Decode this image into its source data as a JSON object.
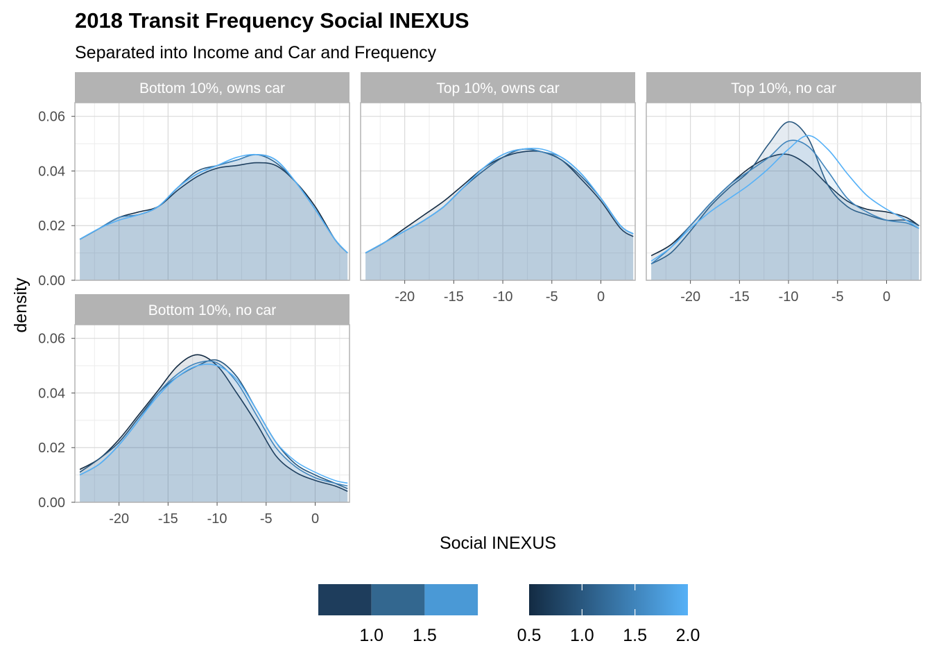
{
  "chart_data": {
    "type": "area",
    "title": "2018 Transit Frequency Social INEXUS",
    "subtitle": "Separated into Income and Car and Frequency",
    "xlabel": "Social INEXUS",
    "ylabel": "density",
    "xlim": [
      -24.5,
      3.5
    ],
    "ylim": [
      0,
      0.065
    ],
    "x_ticks": [
      -20,
      -15,
      -10,
      -5,
      0
    ],
    "y_ticks": [
      0.0,
      0.02,
      0.04,
      0.06
    ],
    "x_tick_labels": [
      "-20",
      "-15",
      "-10",
      "-5",
      "0"
    ],
    "y_tick_labels": [
      "0.00",
      "0.02",
      "0.04",
      "0.06"
    ],
    "grid": true,
    "x": [
      -24,
      -22,
      -20,
      -18,
      -16,
      -14,
      -12,
      -10,
      -8,
      -6,
      -4,
      -2,
      0,
      2,
      3.3
    ],
    "panels": [
      {
        "label": "Bottom 10%, owns car",
        "series": [
          {
            "frequency": 0.5,
            "fill_alpha": 0.3,
            "values": [
              0.015,
              0.019,
              0.023,
              0.025,
              0.027,
              0.033,
              0.038,
              0.041,
              0.042,
              0.043,
              0.042,
              0.036,
              0.027,
              0.015,
              0.01
            ]
          },
          {
            "frequency": 1.0,
            "fill_alpha": 0.3,
            "values": [
              0.015,
              0.019,
              0.023,
              0.024,
              0.027,
              0.034,
              0.04,
              0.042,
              0.044,
              0.046,
              0.043,
              0.036,
              0.026,
              0.015,
              0.01
            ]
          },
          {
            "frequency": 1.5,
            "fill_alpha": 0.3,
            "values": [
              0.015,
              0.019,
              0.023,
              0.024,
              0.027,
              0.034,
              0.039,
              0.042,
              0.044,
              0.046,
              0.044,
              0.036,
              0.026,
              0.015,
              0.01
            ]
          },
          {
            "frequency": 2.0,
            "fill_alpha": 0.0,
            "values": [
              0.015,
              0.019,
              0.022,
              0.024,
              0.027,
              0.034,
              0.039,
              0.042,
              0.045,
              0.046,
              0.044,
              0.036,
              0.026,
              0.015,
              0.01
            ]
          }
        ]
      },
      {
        "label": "Top 10%, owns car",
        "series": [
          {
            "frequency": 0.5,
            "fill_alpha": 0.3,
            "values": [
              0.01,
              0.014,
              0.019,
              0.024,
              0.029,
              0.035,
              0.041,
              0.045,
              0.047,
              0.047,
              0.044,
              0.037,
              0.029,
              0.019,
              0.016
            ]
          },
          {
            "frequency": 1.0,
            "fill_alpha": 0.3,
            "values": [
              0.01,
              0.014,
              0.018,
              0.022,
              0.027,
              0.034,
              0.04,
              0.045,
              0.048,
              0.047,
              0.044,
              0.038,
              0.03,
              0.02,
              0.017
            ]
          },
          {
            "frequency": 1.5,
            "fill_alpha": 0.3,
            "values": [
              0.01,
              0.014,
              0.018,
              0.022,
              0.027,
              0.034,
              0.041,
              0.046,
              0.048,
              0.047,
              0.045,
              0.039,
              0.03,
              0.02,
              0.017
            ]
          },
          {
            "frequency": 2.0,
            "fill_alpha": 0.0,
            "values": [
              0.01,
              0.014,
              0.018,
              0.022,
              0.027,
              0.034,
              0.041,
              0.046,
              0.048,
              0.048,
              0.045,
              0.039,
              0.03,
              0.02,
              0.017
            ]
          }
        ]
      },
      {
        "label": "Top 10%, no car",
        "series": [
          {
            "frequency": 0.5,
            "fill_alpha": 0.3,
            "values": [
              0.009,
              0.013,
              0.02,
              0.028,
              0.035,
              0.041,
              0.045,
              0.046,
              0.042,
              0.035,
              0.029,
              0.026,
              0.025,
              0.023,
              0.02
            ]
          },
          {
            "frequency": 1.0,
            "fill_alpha": 0.3,
            "values": [
              0.006,
              0.01,
              0.018,
              0.027,
              0.034,
              0.04,
              0.05,
              0.058,
              0.052,
              0.035,
              0.027,
              0.024,
              0.022,
              0.022,
              0.02
            ]
          },
          {
            "frequency": 1.5,
            "fill_alpha": 0.3,
            "values": [
              0.006,
              0.012,
              0.02,
              0.028,
              0.035,
              0.04,
              0.045,
              0.051,
              0.049,
              0.04,
              0.03,
              0.025,
              0.022,
              0.021,
              0.019
            ]
          },
          {
            "frequency": 2.0,
            "fill_alpha": 0.0,
            "values": [
              0.007,
              0.012,
              0.019,
              0.025,
              0.03,
              0.035,
              0.041,
              0.048,
              0.053,
              0.048,
              0.039,
              0.031,
              0.026,
              0.022,
              0.019
            ]
          }
        ]
      },
      {
        "label": "Bottom 10%, no car",
        "series": [
          {
            "frequency": 0.5,
            "fill_alpha": 0.3,
            "values": [
              0.012,
              0.016,
              0.023,
              0.032,
              0.041,
              0.05,
              0.054,
              0.05,
              0.04,
              0.029,
              0.017,
              0.011,
              0.008,
              0.006,
              0.004
            ]
          },
          {
            "frequency": 1.0,
            "fill_alpha": 0.3,
            "values": [
              0.011,
              0.016,
              0.022,
              0.031,
              0.04,
              0.046,
              0.05,
              0.052,
              0.046,
              0.034,
              0.022,
              0.014,
              0.01,
              0.007,
              0.005
            ]
          },
          {
            "frequency": 1.5,
            "fill_alpha": 0.3,
            "values": [
              0.01,
              0.014,
              0.021,
              0.03,
              0.04,
              0.047,
              0.051,
              0.051,
              0.044,
              0.032,
              0.02,
              0.013,
              0.009,
              0.007,
              0.006
            ]
          },
          {
            "frequency": 2.0,
            "fill_alpha": 0.0,
            "values": [
              0.01,
              0.014,
              0.021,
              0.03,
              0.039,
              0.046,
              0.05,
              0.05,
              0.045,
              0.034,
              0.022,
              0.015,
              0.011,
              0.008,
              0.007
            ]
          }
        ]
      }
    ],
    "legends": [
      {
        "type": "fill-steps",
        "labels": [
          "1.0",
          "1.5"
        ],
        "colors": [
          "#1e3d5c",
          "#33678f",
          "#4a99d6"
        ]
      },
      {
        "type": "colour-gradient",
        "labels": [
          "0.5",
          "1.0",
          "1.5",
          "2.0"
        ],
        "gradient_from": "#132b43",
        "gradient_to": "#56b1f7"
      }
    ]
  }
}
